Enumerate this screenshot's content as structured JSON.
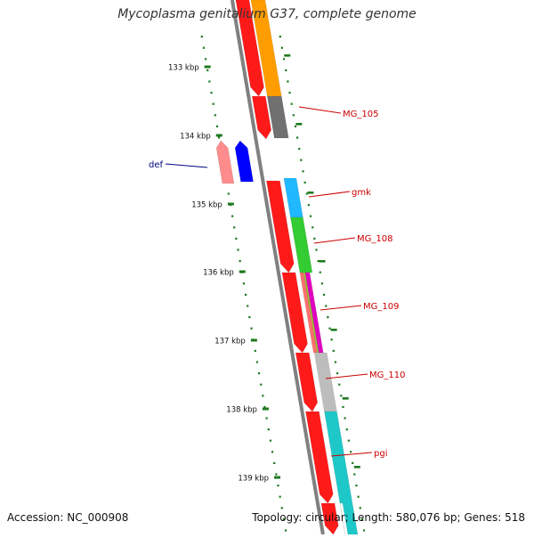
{
  "title": "Mycoplasma genitalium G37, complete genome",
  "footer": {
    "accession": "Accession: NC_000908",
    "summary": "Topology: circular; Length: 580,076 bp; Genes: 518"
  },
  "scale_labels": [
    "133 kbp",
    "134 kbp",
    "135 kbp",
    "136 kbp",
    "137 kbp",
    "138 kbp",
    "139 kbp"
  ],
  "gene_labels": [
    {
      "name": "MG_105",
      "color": "#cc0000"
    },
    {
      "name": "def",
      "color": "#000080"
    },
    {
      "name": "gmk",
      "color": "#cc0000"
    },
    {
      "name": "MG_108",
      "color": "#cc0000"
    },
    {
      "name": "MG_109",
      "color": "#cc0000"
    },
    {
      "name": "MG_110",
      "color": "#cc0000"
    },
    {
      "name": "pgi",
      "color": "#cc0000"
    }
  ],
  "colors": {
    "backbone": "#808080",
    "scale_ticks": "#1f7a1f",
    "gene_red": "#ff1a1a",
    "orange": "#ff9d00",
    "gray_dark": "#707070",
    "pink": "#ff8c8c",
    "blue": "#0000ff",
    "sky": "#20b8ff",
    "green": "#33cc33",
    "silver": "#bdbdbd",
    "cyan": "#1ec8c8",
    "magenta": "#e000c0",
    "olive": "#9cc13a"
  }
}
